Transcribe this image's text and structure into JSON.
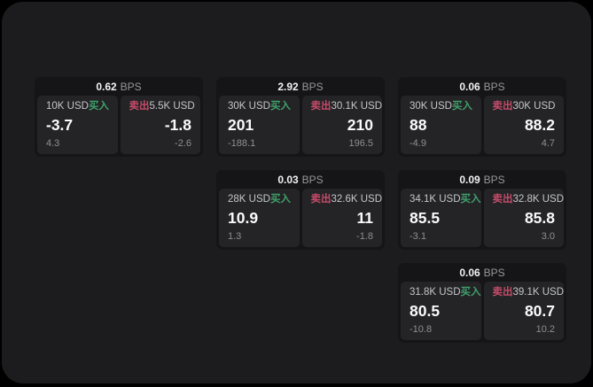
{
  "labels": {
    "bps_unit": "BPS",
    "buy": "买入",
    "sell": "卖出"
  },
  "colors": {
    "accent_green": "#3fa06a",
    "accent_red": "#c64b69"
  },
  "cards": [
    {
      "bps": "0.62",
      "buy": {
        "size": "10K USD",
        "value": "-3.7",
        "sub": "4.3"
      },
      "sell": {
        "size": "5.5K USD",
        "value": "-1.8",
        "sub": "-2.6"
      }
    },
    {
      "bps": "2.92",
      "buy": {
        "size": "30K USD",
        "value": "201",
        "sub": "-188.1"
      },
      "sell": {
        "size": "30.1K USD",
        "value": "210",
        "sub": "196.5"
      }
    },
    {
      "bps": "0.06",
      "buy": {
        "size": "30K USD",
        "value": "88",
        "sub": "-4.9"
      },
      "sell": {
        "size": "30K USD",
        "value": "88.2",
        "sub": "4.7"
      }
    },
    {
      "bps": "0.03",
      "buy": {
        "size": "28K USD",
        "value": "10.9",
        "sub": "1.3"
      },
      "sell": {
        "size": "32.6K USD",
        "value": "11",
        "sub": "-1.8"
      }
    },
    {
      "bps": "0.09",
      "buy": {
        "size": "34.1K USD",
        "value": "85.5",
        "sub": "-3.1"
      },
      "sell": {
        "size": "32.8K USD",
        "value": "85.8",
        "sub": "3.0"
      }
    },
    {
      "bps": "0.06",
      "buy": {
        "size": "31.8K USD",
        "value": "80.5",
        "sub": "-10.8"
      },
      "sell": {
        "size": "39.1K USD",
        "value": "80.7",
        "sub": "10.2"
      }
    }
  ]
}
